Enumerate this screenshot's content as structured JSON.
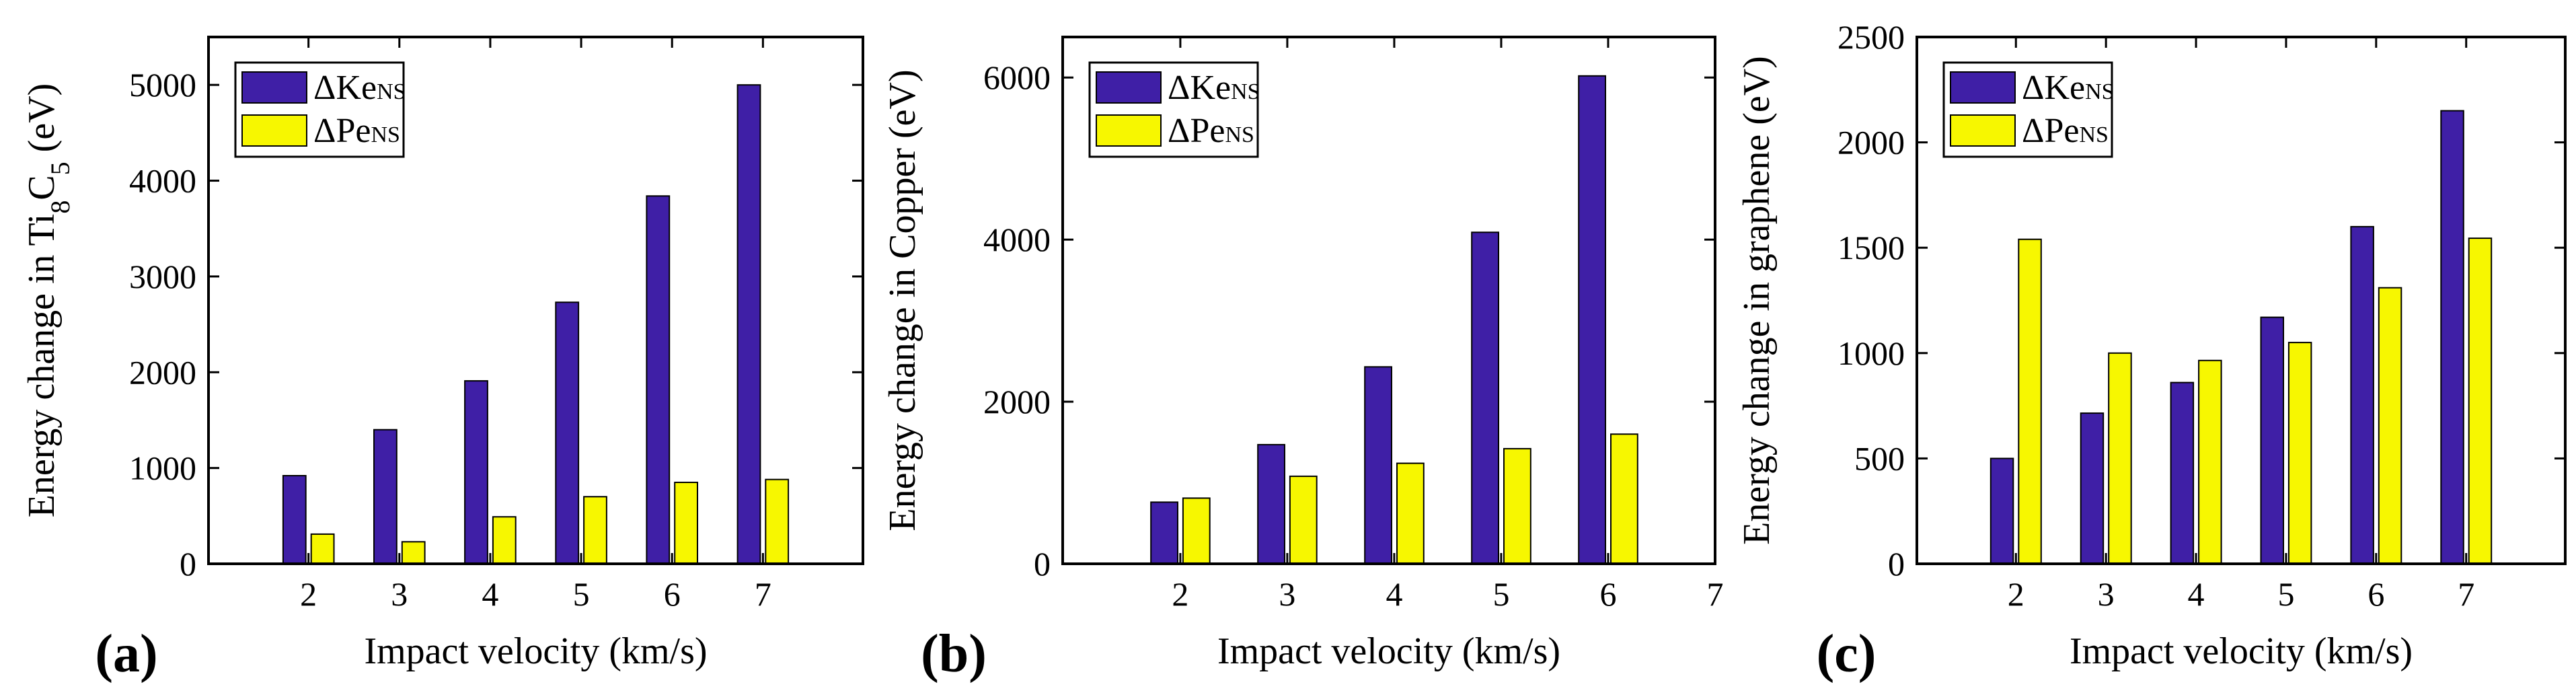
{
  "colors": {
    "ke": "#3f1fa6",
    "pe": "#f7f700",
    "frame": "#000000"
  },
  "chart_data": [
    {
      "type": "bar",
      "panel": "(a)",
      "xlabel": "Impact velocity (km/s)",
      "ylabel": {
        "main": "Energy change in Ti",
        "sub1": "8",
        "mid": "C",
        "sub2": "5",
        "tail": " (eV)"
      },
      "xlim": [
        0.9,
        8.1
      ],
      "ylim": [
        0,
        5500
      ],
      "xticks": [
        "2",
        "3",
        "4",
        "5",
        "6",
        "7"
      ],
      "yticks": [
        "0",
        "1000",
        "2000",
        "3000",
        "4000",
        "5000"
      ],
      "categories": [
        2,
        3,
        4,
        5,
        6,
        7
      ],
      "series": [
        {
          "name": "ΔKe",
          "sub": "NS",
          "values": [
            920,
            1400,
            1910,
            2730,
            3840,
            5000
          ]
        },
        {
          "name": "ΔPe",
          "sub": "NS",
          "values": [
            310,
            230,
            490,
            700,
            850,
            880
          ]
        }
      ],
      "legend": "top-left"
    },
    {
      "type": "bar",
      "panel": "(b)",
      "xlabel": "Impact velocity (km/s)",
      "ylabel": {
        "main": "Energy change in Copper (eV)"
      },
      "xlim": [
        0.9,
        7.0
      ],
      "ylim": [
        0,
        6500
      ],
      "xticks": [
        "2",
        "3",
        "4",
        "5",
        "6",
        "7"
      ],
      "yticks": [
        "0",
        "2000",
        "4000",
        "6000"
      ],
      "categories": [
        2,
        3,
        4,
        5,
        6
      ],
      "series": [
        {
          "name": "ΔKe",
          "sub": "NS",
          "values": [
            760,
            1470,
            2430,
            4090,
            6020
          ]
        },
        {
          "name": "ΔPe",
          "sub": "NS",
          "values": [
            810,
            1080,
            1240,
            1420,
            1600
          ]
        }
      ],
      "legend": "top-left"
    },
    {
      "type": "bar",
      "panel": "(c)",
      "xlabel": "Impact velocity (km/s)",
      "ylabel": {
        "main": "Energy change in graphene (eV)"
      },
      "xlim": [
        0.9,
        8.1
      ],
      "ylim": [
        0,
        2500
      ],
      "xticks": [
        "2",
        "3",
        "4",
        "5",
        "6",
        "7"
      ],
      "yticks": [
        "0",
        "500",
        "1000",
        "1500",
        "2000",
        "2500"
      ],
      "categories": [
        2,
        3,
        4,
        5,
        6,
        7
      ],
      "series": [
        {
          "name": "ΔKe",
          "sub": "NS",
          "values": [
            500,
            715,
            860,
            1170,
            1600,
            2150
          ]
        },
        {
          "name": "ΔPe",
          "sub": "NS",
          "values": [
            1540,
            1000,
            965,
            1050,
            1310,
            1545
          ]
        }
      ],
      "legend": "top-left"
    }
  ]
}
